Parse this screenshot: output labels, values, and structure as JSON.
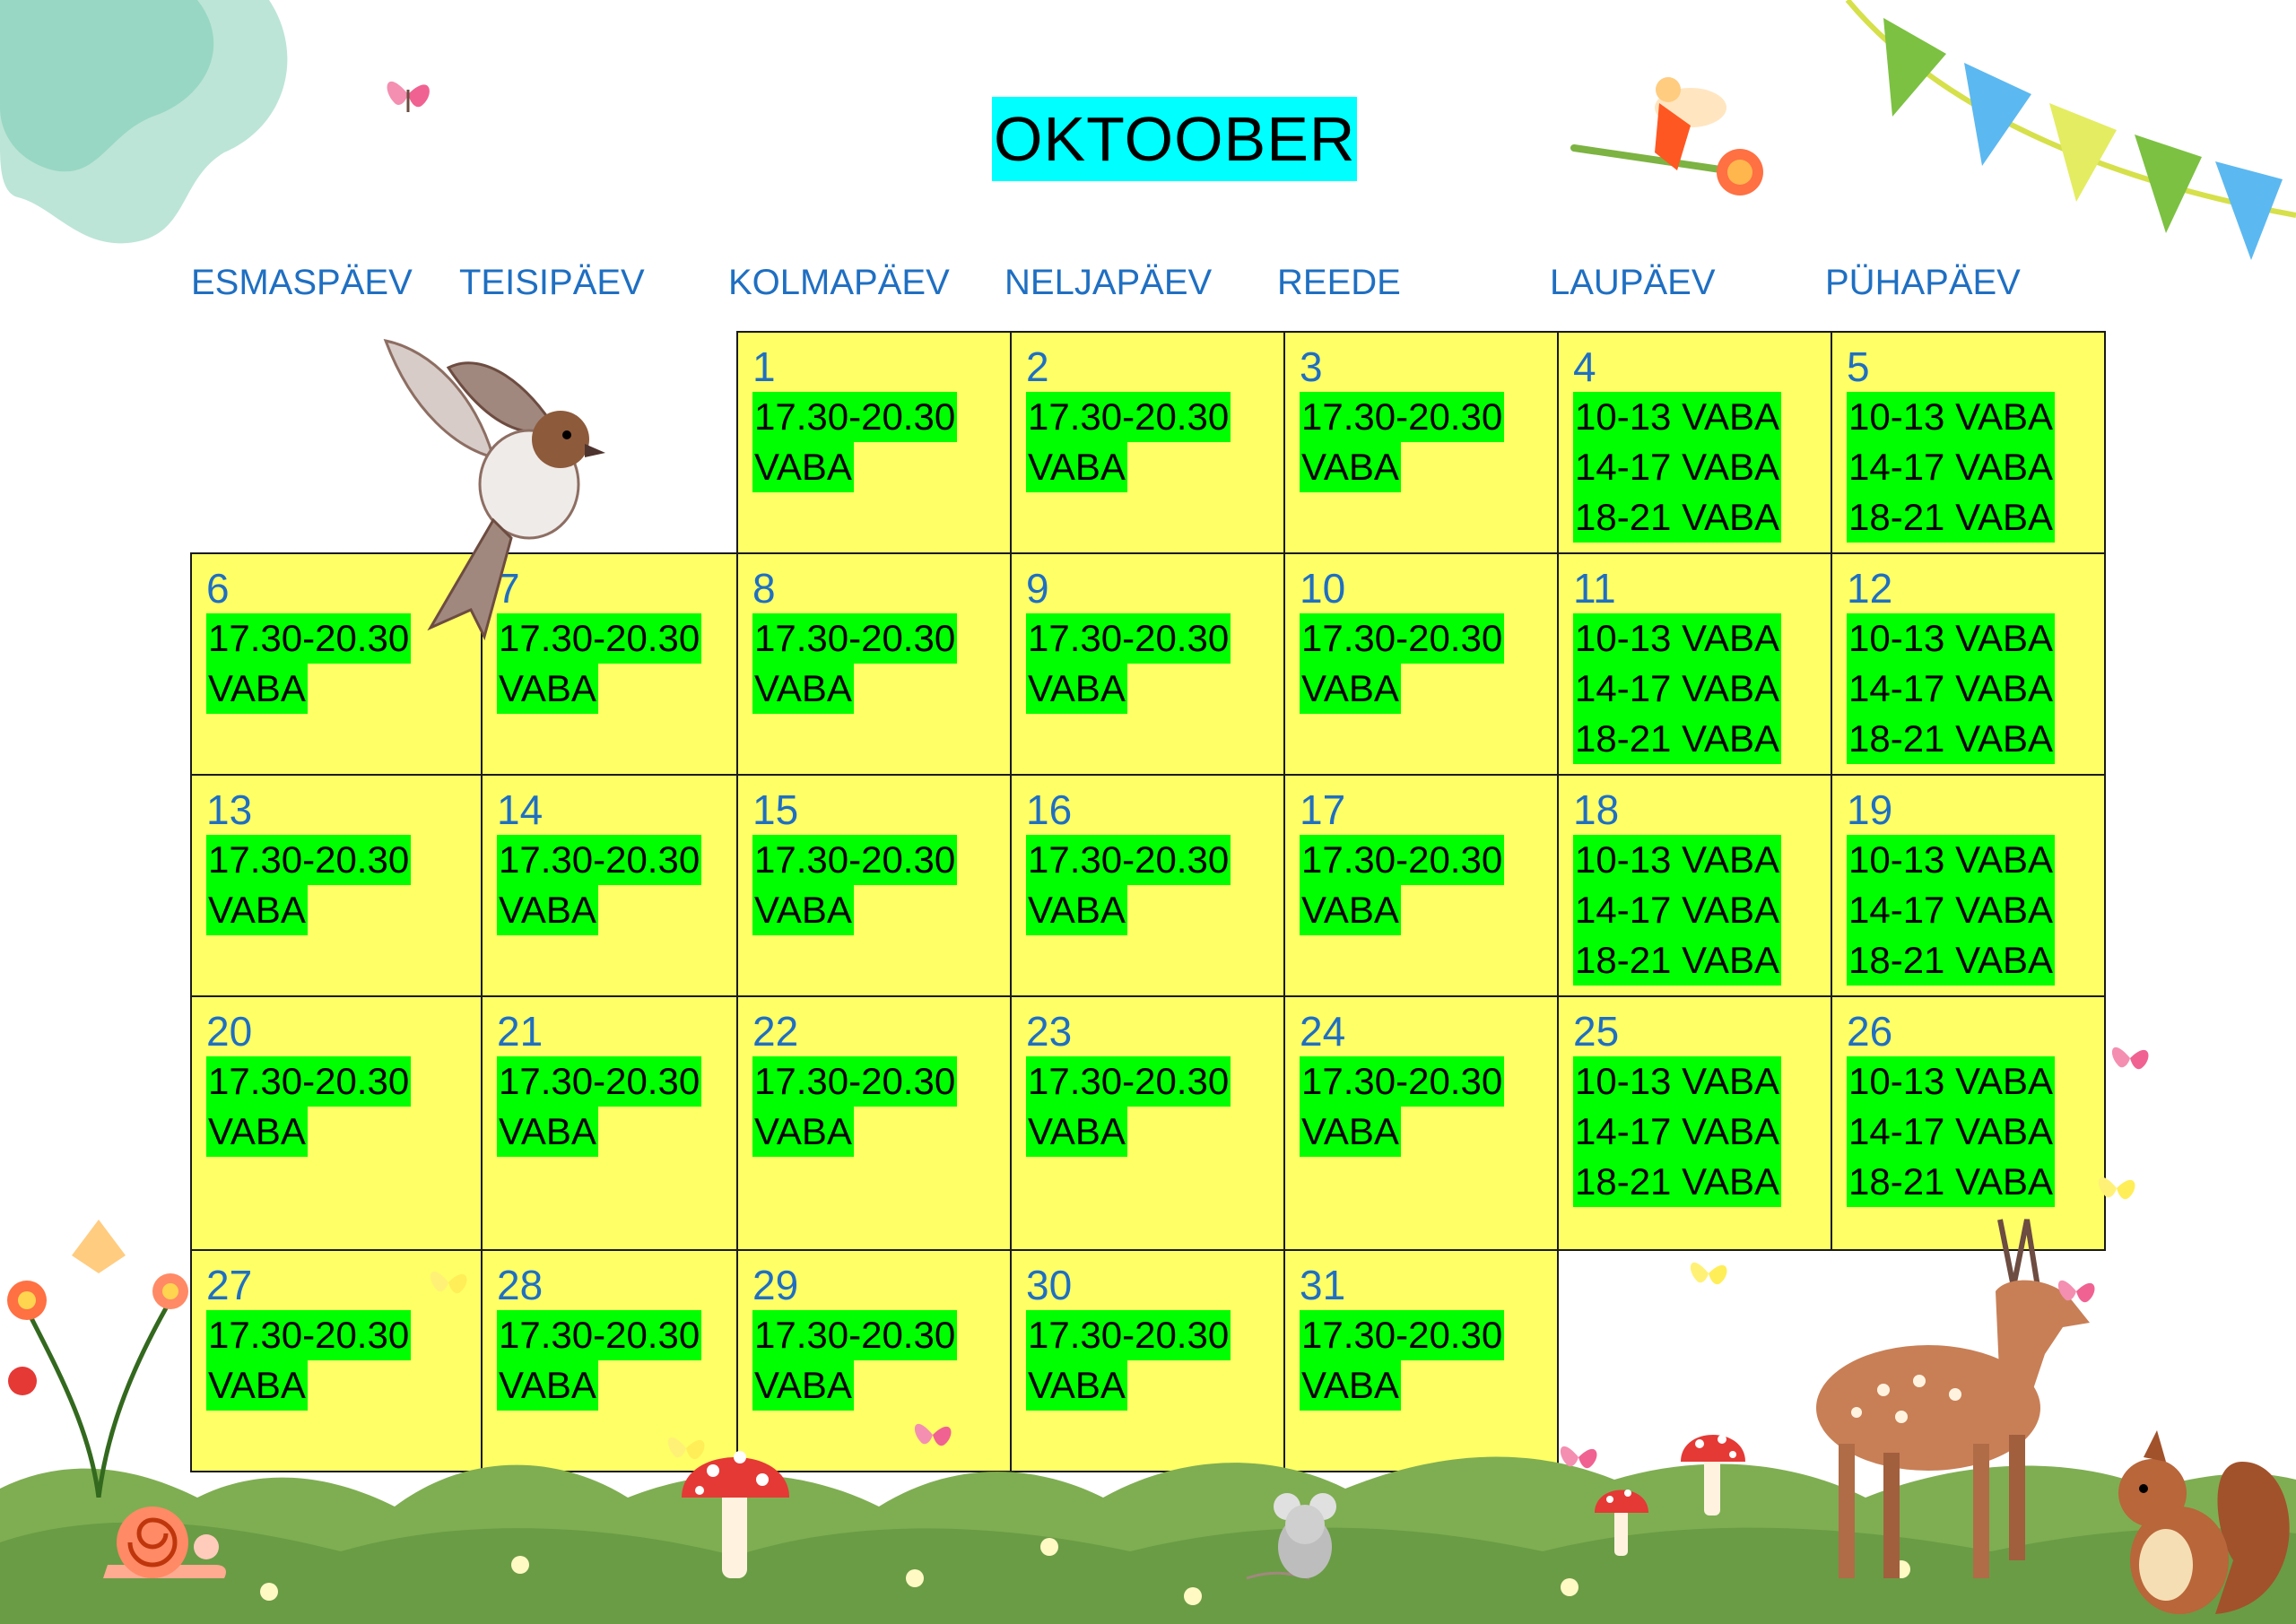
{
  "title": "OKTOOBER",
  "weekdays": [
    "ESMASPÄEV",
    "TEISIPÄEV",
    "KOLMAPÄEV",
    "NELJAPÄEV",
    "REEDE",
    "LAUPÄEV",
    "PÜHAPÄEV"
  ],
  "weekday_slots": [
    "17.30-20.30",
    "VABA"
  ],
  "weekend_slots": [
    "10-13 VABA",
    "14-17 VABA",
    "18-21 VABA"
  ],
  "days": [
    {
      "num": "1",
      "slots": [
        "17.30-20.30",
        "VABA"
      ]
    },
    {
      "num": "2",
      "slots": [
        "17.30-20.30",
        "VABA"
      ]
    },
    {
      "num": "3",
      "slots": [
        "17.30-20.30",
        "VABA"
      ]
    },
    {
      "num": "4",
      "slots": [
        "10-13 VABA",
        "14-17 VABA",
        "18-21 VABA"
      ]
    },
    {
      "num": "5",
      "slots": [
        "10-13 VABA",
        "14-17 VABA",
        "18-21 VABA"
      ]
    },
    {
      "num": "6",
      "slots": [
        "17.30-20.30",
        "VABA"
      ]
    },
    {
      "num": "7",
      "slots": [
        "17.30-20.30",
        "VABA"
      ]
    },
    {
      "num": "8",
      "slots": [
        "17.30-20.30",
        "VABA"
      ]
    },
    {
      "num": "9",
      "slots": [
        "17.30-20.30",
        "VABA"
      ]
    },
    {
      "num": "10",
      "slots": [
        "17.30-20.30",
        "VABA"
      ]
    },
    {
      "num": "11",
      "slots": [
        "10-13 VABA",
        "14-17 VABA",
        "18-21 VABA"
      ]
    },
    {
      "num": "12",
      "slots": [
        "10-13 VABA",
        "14-17 VABA",
        "18-21 VABA"
      ]
    },
    {
      "num": "13",
      "slots": [
        "17.30-20.30",
        "VABA"
      ]
    },
    {
      "num": "14",
      "slots": [
        "17.30-20.30",
        "VABA"
      ]
    },
    {
      "num": "15",
      "slots": [
        "17.30-20.30",
        "VABA"
      ]
    },
    {
      "num": "16",
      "slots": [
        "17.30-20.30",
        "VABA"
      ]
    },
    {
      "num": "17",
      "slots": [
        "17.30-20.30",
        "VABA"
      ]
    },
    {
      "num": "18",
      "slots": [
        "10-13 VABA",
        "14-17 VABA",
        "18-21 VABA"
      ]
    },
    {
      "num": "19",
      "slots": [
        "10-13 VABA",
        "14-17 VABA",
        "18-21 VABA"
      ]
    },
    {
      "num": "20",
      "slots": [
        "17.30-20.30",
        "VABA"
      ]
    },
    {
      "num": "21",
      "slots": [
        "17.30-20.30",
        "VABA"
      ]
    },
    {
      "num": "22",
      "slots": [
        "17.30-20.30",
        "VABA"
      ]
    },
    {
      "num": "23",
      "slots": [
        "17.30-20.30",
        "VABA"
      ]
    },
    {
      "num": "24",
      "slots": [
        "17.30-20.30",
        "VABA"
      ]
    },
    {
      "num": "25",
      "slots": [
        "10-13 VABA",
        "14-17 VABA",
        "18-21 VABA"
      ]
    },
    {
      "num": "26",
      "slots": [
        "10-13 VABA",
        "14-17 VABA",
        "18-21 VABA"
      ]
    },
    {
      "num": "27",
      "slots": [
        "17.30-20.30",
        "VABA"
      ]
    },
    {
      "num": "28",
      "slots": [
        "17.30-20.30",
        "VABA"
      ]
    },
    {
      "num": "29",
      "slots": [
        "17.30-20.30",
        "VABA"
      ]
    },
    {
      "num": "30",
      "slots": [
        "17.30-20.30",
        "VABA"
      ]
    },
    {
      "num": "31",
      "slots": [
        "17.30-20.30",
        "VABA"
      ]
    }
  ],
  "colors": {
    "title_bg": "#00ffff",
    "cell_bg": "#ffff66",
    "slot_bg": "#00ff00",
    "day_text": "#1f6fc2"
  },
  "decorations": [
    "watercolor-splash",
    "butterfly-icon",
    "fairy-icon",
    "bunting-flags",
    "sparrow-icon",
    "flowers-icon",
    "grass-hills",
    "mushroom-icon",
    "snail-icon",
    "mouse-icon",
    "deer-icon",
    "squirrel-icon"
  ]
}
